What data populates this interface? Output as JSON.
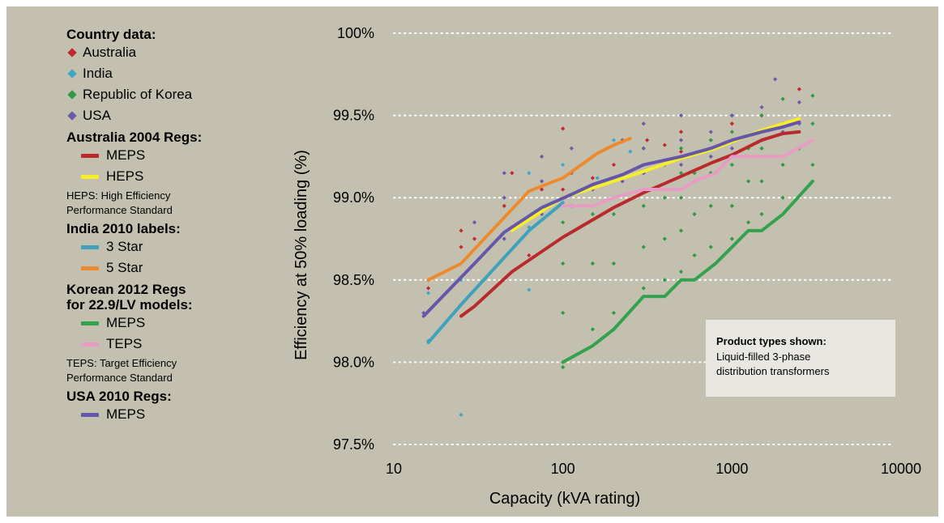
{
  "colors": {
    "background": "#c4c0b0",
    "australia": "#c0282e",
    "india": "#3fa6c4",
    "korea": "#2f9a45",
    "usa": "#6a5aa8",
    "aus_meps": "#b82a2b",
    "aus_heps": "#f6ee2a",
    "india_3star": "#3fa1bb",
    "india_5star": "#ee8a2e",
    "korea_meps": "#34a14e",
    "korea_teps": "#e79cc4",
    "usa_meps": "#6456a8",
    "grid": "#ffffff"
  },
  "legend": {
    "country_heading": "Country data:",
    "countries": [
      {
        "label": "Australia",
        "color": "#c0282e"
      },
      {
        "label": "India",
        "color": "#3fa6c4"
      },
      {
        "label": "Republic of Korea",
        "color": "#2f9a45"
      },
      {
        "label": "USA",
        "color": "#6a5aa8"
      }
    ],
    "aus_heading": "Australia 2004 Regs:",
    "aus_items": [
      {
        "label": "MEPS",
        "color": "#b82a2b"
      },
      {
        "label": "HEPS",
        "color": "#f6ee2a"
      }
    ],
    "aus_note_1": "HEPS: High Efficiency",
    "aus_note_2": "Performance Standard",
    "india_heading": "India 2010 labels:",
    "india_items": [
      {
        "label": "3 Star",
        "color": "#3fa1bb"
      },
      {
        "label": "5 Star",
        "color": "#ee8a2e"
      }
    ],
    "korea_heading_1": "Korean 2012 Regs",
    "korea_heading_2": "for 22.9/LV models:",
    "korea_items": [
      {
        "label": "MEPS",
        "color": "#34a14e"
      },
      {
        "label": "TEPS",
        "color": "#e79cc4"
      }
    ],
    "korea_note_1": "TEPS: Target Efficiency",
    "korea_note_2": "Performance Standard",
    "usa_heading": "USA 2010 Regs:",
    "usa_items": [
      {
        "label": "MEPS",
        "color": "#6456a8"
      }
    ]
  },
  "note_box": {
    "title": "Product types shown:",
    "line_1": "Liquid-filled 3-phase",
    "line_2": "distribution transformers"
  },
  "chart_data": {
    "type": "scatter",
    "xlabel": "Capacity (kVA rating)",
    "ylabel": "Efficiency at 50% loading (%)",
    "x_scale": "log",
    "xlim": [
      10,
      10000
    ],
    "ylim": [
      97.5,
      100
    ],
    "x_ticks": [
      "10",
      "100",
      "1000",
      "10000"
    ],
    "y_ticks": [
      "97.5%",
      "98.0%",
      "98.5%",
      "99.0%",
      "99.5%",
      "100%"
    ],
    "grid": "horizontal dotted",
    "lines": [
      {
        "name": "Australia 2004 Regs: MEPS",
        "color": "#b82a2b",
        "x": [
          25,
          30,
          50,
          100,
          200,
          300,
          500,
          750,
          1000,
          1500,
          2000,
          2500
        ],
        "y": [
          98.28,
          98.34,
          98.55,
          98.76,
          98.94,
          99.03,
          99.13,
          99.21,
          99.26,
          99.35,
          99.39,
          99.4
        ]
      },
      {
        "name": "Australia 2004 Regs: HEPS",
        "color": "#f6ee2a",
        "x": [
          50,
          100,
          200,
          300,
          500,
          750,
          1000,
          1500,
          2000,
          2500
        ],
        "y": [
          98.8,
          99.0,
          99.1,
          99.16,
          99.24,
          99.29,
          99.34,
          99.41,
          99.45,
          99.48
        ]
      },
      {
        "name": "India 2010 labels: 3 Star",
        "color": "#3fa1bb",
        "x": [
          16,
          25,
          63,
          100
        ],
        "y": [
          98.12,
          98.35,
          98.8,
          98.97
        ]
      },
      {
        "name": "India 2010 labels: 5 Star",
        "color": "#ee8a2e",
        "x": [
          16,
          25,
          63,
          100,
          160,
          200,
          250
        ],
        "y": [
          98.5,
          98.6,
          99.04,
          99.12,
          99.27,
          99.32,
          99.36
        ]
      },
      {
        "name": "Korean 2012 Regs: MEPS",
        "color": "#34a14e",
        "x": [
          100,
          150,
          200,
          300,
          400,
          500,
          600,
          800,
          1000,
          1250,
          1500,
          2000,
          3000
        ],
        "y": [
          98.0,
          98.1,
          98.2,
          98.4,
          98.4,
          98.5,
          98.5,
          98.6,
          98.7,
          98.8,
          98.8,
          98.9,
          99.1
        ]
      },
      {
        "name": "Korean 2012 Regs: TEPS",
        "color": "#e79cc4",
        "x": [
          100,
          150,
          200,
          300,
          400,
          500,
          600,
          800,
          1000,
          1250,
          1500,
          2000,
          3000
        ],
        "y": [
          98.95,
          98.95,
          99.0,
          99.05,
          99.05,
          99.05,
          99.1,
          99.15,
          99.25,
          99.25,
          99.25,
          99.25,
          99.35
        ]
      },
      {
        "name": "USA 2010 Regs: MEPS",
        "color": "#6456a8",
        "x": [
          15,
          30,
          45,
          75,
          112.5,
          150,
          225,
          300,
          500,
          750,
          1000,
          1500,
          2000,
          2500
        ],
        "y": [
          98.28,
          98.6,
          98.79,
          98.94,
          99.02,
          99.08,
          99.14,
          99.2,
          99.25,
          99.3,
          99.35,
          99.4,
          99.43,
          99.46
        ]
      }
    ],
    "scatter": [
      {
        "name": "Australia",
        "color": "#c0282e",
        "x": [
          16,
          16,
          25,
          25,
          25,
          30,
          45,
          50,
          63,
          75,
          100,
          100,
          150,
          200,
          315,
          400,
          500,
          500,
          750,
          1000,
          1500,
          2000,
          2500
        ],
        "y": [
          98.45,
          98.5,
          98.7,
          98.8,
          98.35,
          98.75,
          98.95,
          99.15,
          98.65,
          99.05,
          99.42,
          99.05,
          99.12,
          99.2,
          99.35,
          99.32,
          99.28,
          99.4,
          99.35,
          99.45,
          99.5,
          99.45,
          99.66
        ]
      },
      {
        "name": "India",
        "color": "#3fa6c4",
        "x": [
          16,
          16,
          25,
          25,
          25,
          63,
          63,
          63,
          100,
          100,
          160,
          200,
          250
        ],
        "y": [
          98.13,
          98.42,
          97.68,
          98.5,
          98.35,
          99.15,
          98.82,
          98.44,
          99.0,
          99.2,
          99.12,
          99.35,
          99.28
        ]
      },
      {
        "name": "Republic of Korea",
        "color": "#2f9a45",
        "x": [
          100,
          100,
          100,
          100,
          100,
          150,
          150,
          150,
          200,
          200,
          200,
          200,
          300,
          300,
          300,
          300,
          300,
          400,
          400,
          400,
          400,
          500,
          500,
          500,
          500,
          500,
          600,
          600,
          600,
          750,
          750,
          750,
          750,
          1000,
          1000,
          1000,
          1000,
          1000,
          1250,
          1250,
          1250,
          1500,
          1500,
          1500,
          1500,
          2000,
          2000,
          2000,
          2000,
          2500,
          3000,
          3000,
          3000
        ],
        "y": [
          97.97,
          98.3,
          98.6,
          98.85,
          99.0,
          98.2,
          98.6,
          98.9,
          98.3,
          98.6,
          98.9,
          99.1,
          98.45,
          98.7,
          98.95,
          99.15,
          99.3,
          98.5,
          98.75,
          99.0,
          99.2,
          98.55,
          98.8,
          99.0,
          99.15,
          99.3,
          98.65,
          98.9,
          99.15,
          98.7,
          98.95,
          99.15,
          99.35,
          98.75,
          98.95,
          99.2,
          99.4,
          99.5,
          98.85,
          99.1,
          99.3,
          98.9,
          99.1,
          99.3,
          99.5,
          99.0,
          99.2,
          99.45,
          99.6,
          99.3,
          99.2,
          99.45,
          99.62
        ]
      },
      {
        "name": "USA",
        "color": "#6a5aa8",
        "x": [
          15,
          30,
          30,
          45,
          45,
          45,
          75,
          75,
          75,
          112.5,
          112.5,
          112.5,
          150,
          150,
          225,
          225,
          300,
          300,
          300,
          500,
          500,
          500,
          750,
          750,
          1000,
          1000,
          1500,
          1500,
          1800,
          2000,
          2500,
          2500
        ],
        "y": [
          98.3,
          98.6,
          98.85,
          98.75,
          99.0,
          99.15,
          98.9,
          99.1,
          99.25,
          98.95,
          99.15,
          99.3,
          99.05,
          99.25,
          99.1,
          99.35,
          99.15,
          99.3,
          99.45,
          99.2,
          99.35,
          99.5,
          99.25,
          99.4,
          99.3,
          99.5,
          99.35,
          99.55,
          99.72,
          99.4,
          99.45,
          99.58
        ]
      }
    ]
  }
}
